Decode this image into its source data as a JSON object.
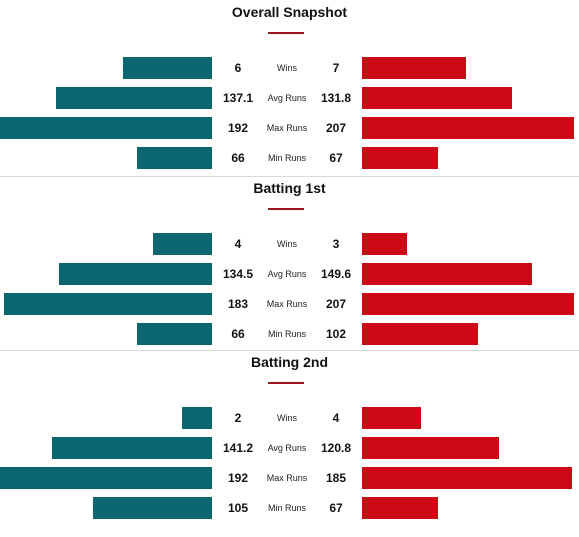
{
  "colors": {
    "left": "#0c6670",
    "right": "#cc0a15",
    "accent": "#a0121e"
  },
  "scale_max": 207,
  "sections": [
    {
      "title": "Overall Snapshot",
      "rows": [
        {
          "label": "Wins",
          "left": 6,
          "right": 7
        },
        {
          "label": "Avg Runs",
          "left": "137.1",
          "right": "131.8"
        },
        {
          "label": "Max Runs",
          "left": 192,
          "right": 207
        },
        {
          "label": "Min Runs",
          "left": 66,
          "right": 67
        }
      ]
    },
    {
      "title": "Batting 1st",
      "rows": [
        {
          "label": "Wins",
          "left": 4,
          "right": 3
        },
        {
          "label": "Avg Runs",
          "left": "134.5",
          "right": "149.6"
        },
        {
          "label": "Max Runs",
          "left": 183,
          "right": 207
        },
        {
          "label": "Min Runs",
          "left": 66,
          "right": 102
        }
      ]
    },
    {
      "title": "Batting 2nd",
      "rows": [
        {
          "label": "Wins",
          "left": 2,
          "right": 4
        },
        {
          "label": "Avg Runs",
          "left": "141.2",
          "right": "120.8"
        },
        {
          "label": "Max Runs",
          "left": 192,
          "right": 185
        },
        {
          "label": "Min Runs",
          "left": 105,
          "right": 67
        }
      ]
    }
  ]
}
